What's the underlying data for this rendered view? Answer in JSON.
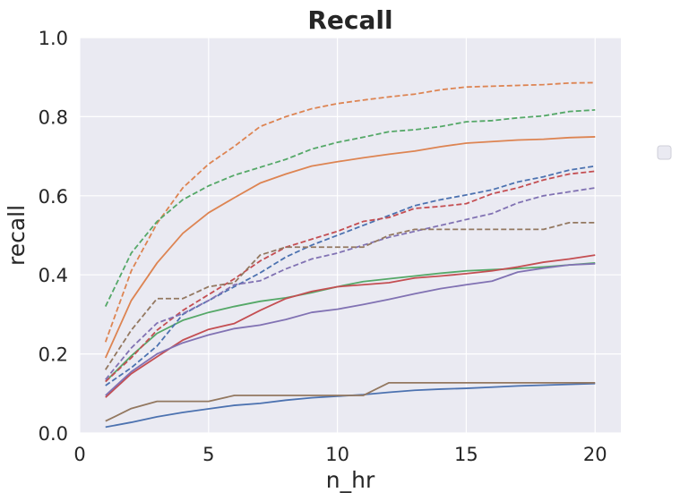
{
  "chart_data": {
    "type": "line",
    "title": "Recall",
    "xlabel": "n_hr",
    "ylabel": "recall",
    "xlim": [
      0,
      21
    ],
    "ylim": [
      0,
      1.0
    ],
    "xticks": [
      0,
      5,
      10,
      15,
      20
    ],
    "yticks": [
      0.0,
      0.2,
      0.4,
      0.6,
      0.8,
      1.0
    ],
    "xtick_labels": [
      "0",
      "5",
      "10",
      "15",
      "20"
    ],
    "ytick_labels": [
      "0.0",
      "0.2",
      "0.4",
      "0.6",
      "0.8",
      "1.0"
    ],
    "grid": true,
    "background": "#eaeaf2",
    "legend": {
      "placement": "right",
      "entries": []
    },
    "x": [
      1,
      2,
      3,
      4,
      5,
      6,
      7,
      8,
      9,
      10,
      11,
      12,
      13,
      14,
      15,
      16,
      17,
      18,
      19,
      20
    ],
    "series": [
      {
        "color": "#4c72b0",
        "style": "solid",
        "values": [
          0.015,
          0.027,
          0.041,
          0.052,
          0.061,
          0.07,
          0.075,
          0.083,
          0.089,
          0.093,
          0.097,
          0.103,
          0.108,
          0.111,
          0.113,
          0.116,
          0.119,
          0.121,
          0.123,
          0.125
        ]
      },
      {
        "color": "#dd8452",
        "style": "solid",
        "values": [
          0.19,
          0.335,
          0.43,
          0.505,
          0.557,
          0.595,
          0.632,
          0.655,
          0.675,
          0.686,
          0.696,
          0.705,
          0.713,
          0.724,
          0.733,
          0.737,
          0.741,
          0.743,
          0.747,
          0.749
        ]
      },
      {
        "color": "#55a868",
        "style": "solid",
        "values": [
          0.13,
          0.195,
          0.252,
          0.285,
          0.305,
          0.32,
          0.333,
          0.342,
          0.355,
          0.37,
          0.383,
          0.39,
          0.397,
          0.404,
          0.41,
          0.413,
          0.416,
          0.42,
          0.425,
          0.43
        ]
      },
      {
        "color": "#c44e52",
        "style": "solid",
        "values": [
          0.09,
          0.15,
          0.193,
          0.235,
          0.262,
          0.277,
          0.31,
          0.34,
          0.358,
          0.37,
          0.375,
          0.38,
          0.392,
          0.397,
          0.403,
          0.41,
          0.42,
          0.432,
          0.44,
          0.45
        ]
      },
      {
        "color": "#8172b3",
        "style": "solid",
        "values": [
          0.095,
          0.155,
          0.2,
          0.228,
          0.248,
          0.264,
          0.273,
          0.287,
          0.305,
          0.313,
          0.325,
          0.338,
          0.352,
          0.365,
          0.375,
          0.384,
          0.407,
          0.417,
          0.425,
          0.428
        ]
      },
      {
        "color": "#937860",
        "style": "solid",
        "values": [
          0.03,
          0.062,
          0.08,
          0.08,
          0.08,
          0.095,
          0.095,
          0.095,
          0.095,
          0.095,
          0.095,
          0.127,
          0.127,
          0.127,
          0.127,
          0.127,
          0.127,
          0.127,
          0.127,
          0.127
        ]
      },
      {
        "color": "#4c72b0",
        "style": "dashed",
        "values": [
          0.12,
          0.165,
          0.22,
          0.3,
          0.335,
          0.37,
          0.405,
          0.445,
          0.475,
          0.5,
          0.525,
          0.55,
          0.575,
          0.59,
          0.602,
          0.615,
          0.635,
          0.648,
          0.665,
          0.675
        ]
      },
      {
        "color": "#dd8452",
        "style": "dashed",
        "values": [
          0.23,
          0.41,
          0.53,
          0.62,
          0.68,
          0.725,
          0.775,
          0.8,
          0.82,
          0.833,
          0.842,
          0.85,
          0.857,
          0.868,
          0.875,
          0.877,
          0.879,
          0.881,
          0.885,
          0.886
        ]
      },
      {
        "color": "#55a868",
        "style": "dashed",
        "values": [
          0.32,
          0.455,
          0.535,
          0.59,
          0.625,
          0.652,
          0.672,
          0.692,
          0.718,
          0.735,
          0.748,
          0.762,
          0.767,
          0.775,
          0.787,
          0.79,
          0.797,
          0.802,
          0.813,
          0.817
        ]
      },
      {
        "color": "#c44e52",
        "style": "dashed",
        "values": [
          0.13,
          0.19,
          0.26,
          0.31,
          0.35,
          0.39,
          0.435,
          0.47,
          0.49,
          0.51,
          0.535,
          0.545,
          0.568,
          0.573,
          0.58,
          0.605,
          0.62,
          0.64,
          0.655,
          0.662
        ]
      },
      {
        "color": "#8172b3",
        "style": "dashed",
        "values": [
          0.135,
          0.215,
          0.278,
          0.302,
          0.335,
          0.375,
          0.385,
          0.415,
          0.44,
          0.455,
          0.475,
          0.495,
          0.51,
          0.525,
          0.54,
          0.555,
          0.582,
          0.6,
          0.61,
          0.62
        ]
      },
      {
        "color": "#937860",
        "style": "dashed",
        "values": [
          0.16,
          0.26,
          0.34,
          0.34,
          0.37,
          0.38,
          0.45,
          0.47,
          0.47,
          0.47,
          0.47,
          0.5,
          0.515,
          0.515,
          0.515,
          0.515,
          0.515,
          0.515,
          0.532,
          0.532
        ]
      }
    ]
  }
}
